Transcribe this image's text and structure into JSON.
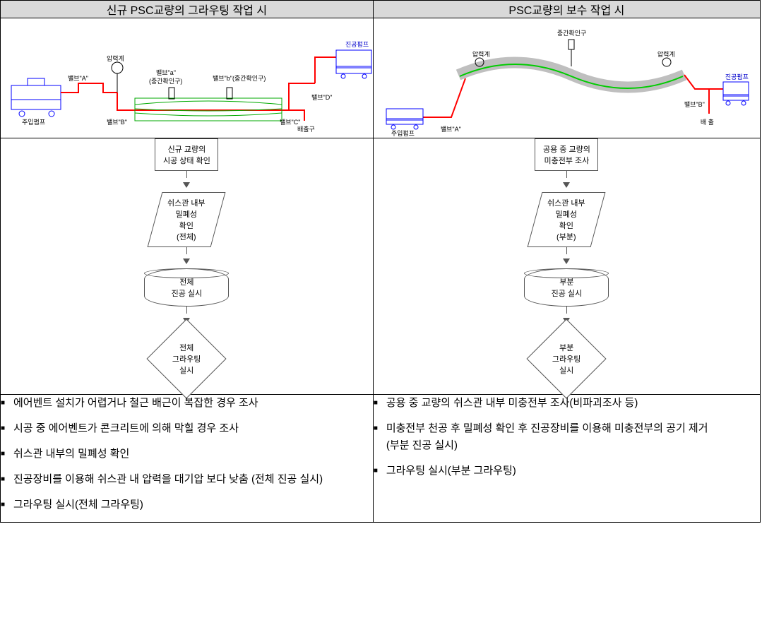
{
  "headers": {
    "left": "신규 PSC교량의 그라우팅 작업 시",
    "right": "PSC교량의 보수 작업 시"
  },
  "diagram_left": {
    "pump_in": "주입펌프",
    "valve_A": "밸브\"A\"",
    "gauge": "압력계",
    "valve_B": "밸브\"B\"",
    "valve_a": "밸브\"a\"",
    "valve_a_sub": "(중간확인구)",
    "valve_b": "밸브\"b\"(중간확인구)",
    "valve_C": "밸브\"C\"",
    "valve_D": "밸브\"D\"",
    "outlet": "배출구",
    "vac_pump": "진공펌프",
    "colors": {
      "line": "#ff0000",
      "duct": "#00aa00",
      "equip": "#0000ff"
    }
  },
  "diagram_right": {
    "pump_in": "주입펌프",
    "valve_A": "밸브\"A\"",
    "gauge": "압력계",
    "mid_check": "중간확인구",
    "gauge2": "압력계",
    "valve_B": "밸브\"B\"",
    "outlet": "배 출",
    "vac_pump": "진공펌프",
    "colors": {
      "line": "#ff0000",
      "duct_green": "#00cc00",
      "duct_gray": "#bfbfbf",
      "equip": "#0000ff"
    }
  },
  "flowchart_left": {
    "step1": "신규 교량의\n시공 상태 확인",
    "step2": "쉬스관 내부\n밀폐성\n확인\n(전체)",
    "step3": "전체\n진공 실시",
    "step4": "전체\n그라우팅\n실시"
  },
  "flowchart_right": {
    "step1": "공용 중 교량의\n미충전부 조사",
    "step2": "쉬스관 내부\n밀폐성\n확인\n(부분)",
    "step3": "부분\n진공 실시",
    "step4": "부분\n그라우팅\n실시"
  },
  "bullets_left": [
    "에어벤트 설치가 어렵거나 철근 배근이 복잡한 경우 조사",
    "시공 중 에어벤트가 콘크리트에 의해 막힐 경우 조사",
    "쉬스관 내부의 밀폐성 확인",
    "진공장비를 이용해 쉬스관 내 압력을 대기압 보다 낮춤 (전체 진공 실시)",
    "그라우팅 실시(전체 그라우팅)"
  ],
  "bullets_right": [
    "공용 중 교량의 쉬스관 내부 미충전부 조사(비파괴조사 등)",
    "미충전부 천공 후 밀폐성 확인 후 진공장비를 이용해 미충전부의 공기 제거\n(부분 진공 실시)",
    "그라우팅 실시(부분 그라우팅)"
  ]
}
